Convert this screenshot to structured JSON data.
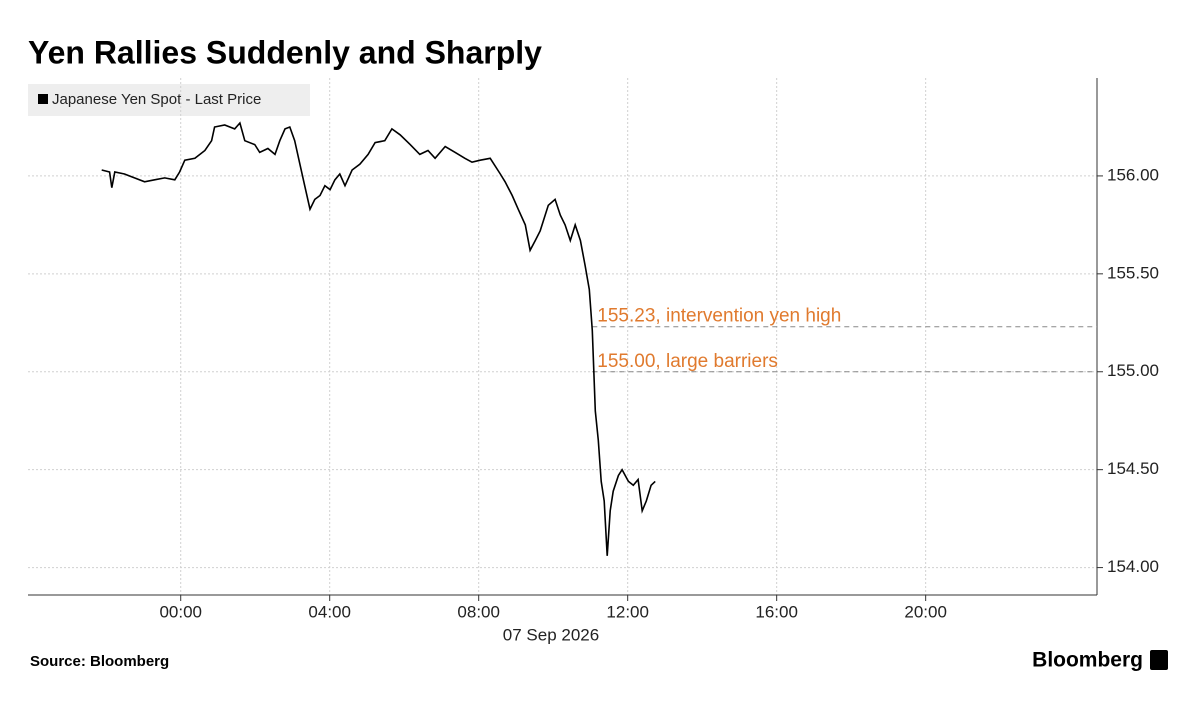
{
  "chart_data": {
    "type": "line",
    "title": "Yen Rallies Suddenly and Sharply",
    "x_label": "07 Sep 2026",
    "source": "Source: Bloomberg",
    "logo": "Bloomberg",
    "x": [
      -2.12,
      -1.91,
      -1.85,
      -1.77,
      -1.51,
      -1.24,
      -0.97,
      -0.7,
      -0.43,
      -0.16,
      -0.03,
      0.11,
      0.38,
      0.65,
      0.83,
      0.91,
      1.18,
      1.45,
      1.59,
      1.72,
      1.99,
      2.12,
      2.34,
      2.53,
      2.66,
      2.8,
      2.93,
      3.06,
      3.2,
      3.33,
      3.47,
      3.6,
      3.74,
      3.87,
      4.01,
      4.14,
      4.27,
      4.41,
      4.6,
      4.81,
      5.03,
      5.22,
      5.48,
      5.67,
      5.89,
      6.16,
      6.42,
      6.64,
      6.83,
      7.1,
      7.37,
      7.63,
      7.82,
      8.04,
      8.31,
      8.58,
      8.71,
      8.9,
      9.06,
      9.25,
      9.38,
      9.52,
      9.65,
      9.87,
      10.05,
      10.19,
      10.32,
      10.46,
      10.59,
      10.73,
      10.86,
      10.97,
      11.05,
      11.13,
      11.21,
      11.29,
      11.37,
      11.45,
      11.53,
      11.61,
      11.75,
      11.85,
      12.02,
      12.15,
      12.28,
      12.39,
      12.5,
      12.63,
      12.74
    ],
    "series": [
      {
        "name": "Japanese Yen Spot - Last Price",
        "color": "#000000",
        "values": [
          156.03,
          156.02,
          155.94,
          156.02,
          156.01,
          155.99,
          155.97,
          155.98,
          155.99,
          155.98,
          156.02,
          156.08,
          156.09,
          156.13,
          156.18,
          156.25,
          156.26,
          156.24,
          156.27,
          156.18,
          156.16,
          156.12,
          156.14,
          156.11,
          156.18,
          156.24,
          156.25,
          156.18,
          156.06,
          155.95,
          155.83,
          155.88,
          155.9,
          155.95,
          155.93,
          155.98,
          156.01,
          155.95,
          156.03,
          156.06,
          156.11,
          156.17,
          156.18,
          156.24,
          156.21,
          156.16,
          156.11,
          156.13,
          156.09,
          156.15,
          156.12,
          156.09,
          156.07,
          156.08,
          156.09,
          156.01,
          155.97,
          155.9,
          155.83,
          155.75,
          155.62,
          155.67,
          155.72,
          155.85,
          155.88,
          155.8,
          155.75,
          155.67,
          155.75,
          155.67,
          155.54,
          155.42,
          155.21,
          154.8,
          154.65,
          154.44,
          154.34,
          154.06,
          154.29,
          154.39,
          154.47,
          154.5,
          154.44,
          154.42,
          154.45,
          154.29,
          154.34,
          154.42,
          154.44
        ]
      }
    ],
    "xlim": [
      -4.1,
      24.6
    ],
    "xticks": [
      {
        "value": 0,
        "label": "00:00"
      },
      {
        "value": 4,
        "label": "04:00"
      },
      {
        "value": 8,
        "label": "08:00"
      },
      {
        "value": 12,
        "label": "12:00"
      },
      {
        "value": 16,
        "label": "16:00"
      },
      {
        "value": 20,
        "label": "20:00"
      }
    ],
    "ylim": [
      153.86,
      156.5
    ],
    "yticks": [
      {
        "value": 154,
        "label": "154.00"
      },
      {
        "value": 154.5,
        "label": "154.50"
      },
      {
        "value": 155,
        "label": "155.00"
      },
      {
        "value": 155.5,
        "label": "155.50"
      },
      {
        "value": 156,
        "label": "156.00"
      }
    ],
    "annotations": [
      {
        "text": "155.23, intervention yen high",
        "y": 155.23,
        "x": 11.05,
        "color": "#e07a2e"
      },
      {
        "text": "155.00, large barriers",
        "y": 155.0,
        "x": 11.05,
        "color": "#e07a2e"
      }
    ],
    "grid": true
  }
}
